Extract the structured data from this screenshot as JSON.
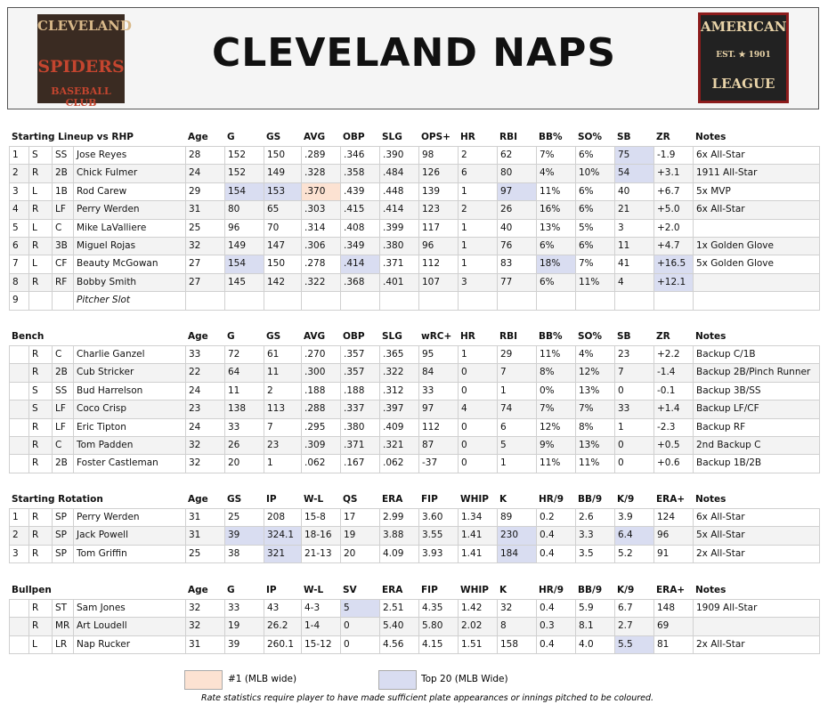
{
  "header": {
    "title": "CLEVELAND NAPS",
    "left_logo": [
      "CLEVELAND",
      "SPIDERS",
      "BASEBALL CLUB"
    ],
    "right_logo": [
      "AMERICAN",
      "EST.",
      "1901",
      "LEAGUE"
    ]
  },
  "tables": [
    {
      "header": [
        "Starting Lineup vs RHP",
        "Age",
        "G",
        "GS",
        "AVG",
        "OBP",
        "SLG",
        "OPS+",
        "HR",
        "RBI",
        "BB%",
        "SO%",
        "SB",
        "ZR",
        "Notes"
      ],
      "rows": [
        [
          "1",
          "S",
          "SS",
          "Jose Reyes",
          "28",
          "152",
          "150",
          ".289",
          ".346",
          ".390",
          "98",
          "2",
          "62",
          "7%",
          "6%",
          "75",
          "-1.9",
          "6x All-Star"
        ],
        [
          "2",
          "R",
          "2B",
          "Chick Fulmer",
          "24",
          "152",
          "149",
          ".328",
          ".358",
          ".484",
          "126",
          "6",
          "80",
          "4%",
          "10%",
          "54",
          "+3.1",
          "1911 All-Star"
        ],
        [
          "3",
          "L",
          "1B",
          "Rod Carew",
          "29",
          "154",
          "153",
          ".370",
          ".439",
          ".448",
          "139",
          "1",
          "97",
          "11%",
          "6%",
          "40",
          "+6.7",
          "5x MVP"
        ],
        [
          "4",
          "R",
          "LF",
          "Perry Werden",
          "31",
          "80",
          "65",
          ".303",
          ".415",
          ".414",
          "123",
          "2",
          "26",
          "16%",
          "6%",
          "21",
          "+5.0",
          "6x All-Star"
        ],
        [
          "5",
          "L",
          "C",
          "Mike LaValliere",
          "25",
          "96",
          "70",
          ".314",
          ".408",
          ".399",
          "117",
          "1",
          "40",
          "13%",
          "5%",
          "3",
          "+2.0",
          null
        ],
        [
          "6",
          "R",
          "3B",
          "Miguel Rojas",
          "32",
          "149",
          "147",
          ".306",
          ".349",
          ".380",
          "96",
          "1",
          "76",
          "6%",
          "6%",
          "11",
          "+4.7",
          "1x Golden Glove"
        ],
        [
          "7",
          "L",
          "CF",
          "Beauty McGowan",
          "27",
          "154",
          "150",
          ".278",
          ".414",
          ".371",
          "112",
          "1",
          "83",
          "18%",
          "7%",
          "41",
          "+16.5",
          "5x Golden Glove"
        ],
        [
          "8",
          "R",
          "RF",
          "Bobby Smith",
          "27",
          "145",
          "142",
          ".322",
          ".368",
          ".401",
          "107",
          "3",
          "77",
          "6%",
          "11%",
          "4",
          "+12.1",
          null
        ],
        [
          "9",
          null,
          null,
          "Pitcher Slot",
          null,
          null,
          null,
          null,
          null,
          null,
          null,
          null,
          null,
          null,
          null,
          null,
          null,
          null
        ]
      ]
    },
    {
      "header": [
        "Bench",
        "Age",
        "G",
        "GS",
        "AVG",
        "OBP",
        "SLG",
        "wRC+",
        "HR",
        "RBI",
        "BB%",
        "SO%",
        "SB",
        "ZR",
        "Notes"
      ],
      "rows": [
        [
          null,
          "R",
          "C",
          "Charlie Ganzel",
          "33",
          "72",
          "61",
          ".270",
          ".357",
          ".365",
          "95",
          "1",
          "29",
          "11%",
          "4%",
          "23",
          "+2.2",
          "Backup C/1B"
        ],
        [
          null,
          "R",
          "2B",
          "Cub Stricker",
          "22",
          "64",
          "11",
          ".300",
          ".357",
          ".322",
          "84",
          "0",
          "7",
          "8%",
          "12%",
          "7",
          "-1.4",
          "Backup 2B/Pinch Runner"
        ],
        [
          null,
          "S",
          "SS",
          "Bud Harrelson",
          "24",
          "11",
          "2",
          ".188",
          ".188",
          ".312",
          "33",
          "0",
          "1",
          "0%",
          "13%",
          "0",
          "-0.1",
          "Backup 3B/SS"
        ],
        [
          null,
          "S",
          "LF",
          "Coco Crisp",
          "23",
          "138",
          "113",
          ".288",
          ".337",
          ".397",
          "97",
          "4",
          "74",
          "7%",
          "7%",
          "33",
          "+1.4",
          "Backup LF/CF"
        ],
        [
          null,
          "R",
          "LF",
          "Eric Tipton",
          "24",
          "33",
          "7",
          ".295",
          ".380",
          ".409",
          "112",
          "0",
          "6",
          "12%",
          "8%",
          "1",
          "-2.3",
          "Backup RF"
        ],
        [
          null,
          "R",
          "C",
          "Tom Padden",
          "32",
          "26",
          "23",
          ".309",
          ".371",
          ".321",
          "87",
          "0",
          "5",
          "9%",
          "13%",
          "0",
          "+0.5",
          "2nd Backup C"
        ],
        [
          null,
          "R",
          "2B",
          "Foster Castleman",
          "32",
          "20",
          "1",
          ".062",
          ".167",
          ".062",
          "-37",
          "0",
          "1",
          "11%",
          "11%",
          "0",
          "+0.6",
          "Backup 1B/2B"
        ]
      ]
    },
    {
      "header": [
        "Starting Rotation",
        "Age",
        "GS",
        "IP",
        "W-L",
        "QS",
        "ERA",
        "FIP",
        "WHIP",
        "K",
        "HR/9",
        "BB/9",
        "K/9",
        "ERA+",
        "Notes"
      ],
      "rows": [
        [
          "1",
          "R",
          "SP",
          "Perry Werden",
          "31",
          "25",
          "208",
          "15-8",
          "17",
          "2.99",
          "3.60",
          "1.34",
          "89",
          "0.2",
          "2.6",
          "3.9",
          "124",
          "6x All-Star"
        ],
        [
          "2",
          "R",
          "SP",
          "Jack Powell",
          "31",
          "39",
          "324.1",
          "18-16",
          "19",
          "3.88",
          "3.55",
          "1.41",
          "230",
          "0.4",
          "3.3",
          "6.4",
          "96",
          "5x All-Star"
        ],
        [
          "3",
          "R",
          "SP",
          "Tom Griffin",
          "25",
          "38",
          "321",
          "21-13",
          "20",
          "4.09",
          "3.93",
          "1.41",
          "184",
          "0.4",
          "3.5",
          "5.2",
          "91",
          "2x All-Star"
        ]
      ]
    },
    {
      "header": [
        "Bullpen",
        "Age",
        "G",
        "IP",
        "W-L",
        "SV",
        "ERA",
        "FIP",
        "WHIP",
        "K",
        "HR/9",
        "BB/9",
        "K/9",
        "ERA+",
        "Notes"
      ],
      "rows": [
        [
          null,
          "R",
          "ST",
          "Sam Jones",
          "32",
          "33",
          "43",
          "4-3",
          "5",
          "2.51",
          "4.35",
          "1.42",
          "32",
          "0.4",
          "5.9",
          "6.7",
          "148",
          "1909 All-Star"
        ],
        [
          null,
          "R",
          "MR",
          "Art Loudell",
          "32",
          "19",
          "26.2",
          "1-4",
          "0",
          "5.40",
          "5.80",
          "2.02",
          "8",
          "0.3",
          "8.1",
          "2.7",
          "69",
          null
        ],
        [
          null,
          "L",
          "LR",
          "Nap Rucker",
          "31",
          "39",
          "260.1",
          "15-12",
          "0",
          "4.56",
          "4.15",
          "1.51",
          "158",
          "0.4",
          "4.0",
          "5.5",
          "81",
          "2x All-Star"
        ]
      ]
    }
  ],
  "legend": {
    "first": "#1 (MLB wide)",
    "top20": "Top 20 (MLB Wide)",
    "note": "Rate statistics require player to have made sufficient plate appearances or innings pitched to be coloured."
  }
}
